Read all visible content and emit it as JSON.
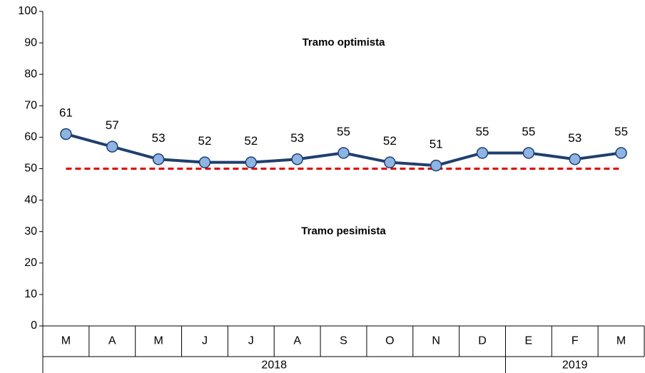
{
  "chart_data": {
    "type": "line",
    "categories": [
      "M",
      "A",
      "M",
      "J",
      "J",
      "A",
      "S",
      "O",
      "N",
      "D",
      "E",
      "F",
      "M"
    ],
    "groups": [
      {
        "label": "2018",
        "count": 10
      },
      {
        "label": "2019",
        "count": 3
      }
    ],
    "series": [
      {
        "color": "#1f3f6e",
        "marker_color": "#8db4e2",
        "values": [
          61,
          57,
          53,
          52,
          52,
          53,
          55,
          52,
          51,
          55,
          55,
          53,
          55
        ]
      }
    ],
    "ylim": [
      0,
      100
    ],
    "yticks": [
      0,
      10,
      20,
      30,
      40,
      50,
      60,
      70,
      80,
      90,
      100
    ],
    "reference_line": {
      "value": 50,
      "color": "#e00000"
    },
    "annotations": [
      {
        "text": "Tramo optimista",
        "y": 90
      },
      {
        "text": "Tramo pesimista",
        "y": 30
      }
    ]
  }
}
